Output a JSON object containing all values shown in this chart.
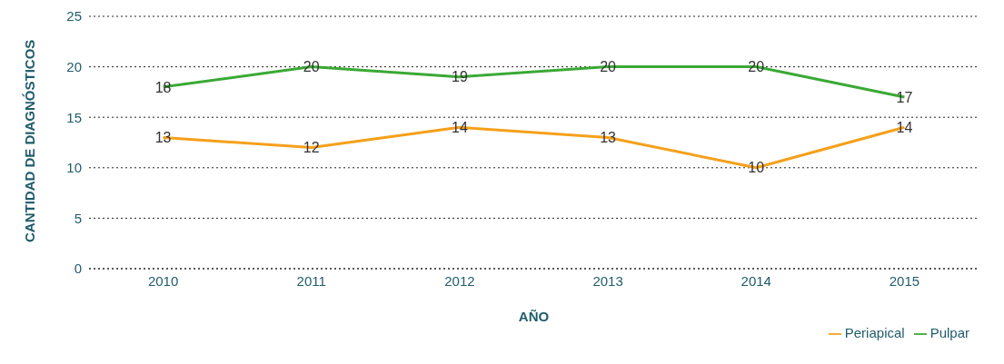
{
  "chart_data": {
    "type": "line",
    "xlabel": "AÑO",
    "ylabel": "CANTIDAD DE DIAGNÓSTICOS",
    "categories": [
      "2010",
      "2011",
      "2012",
      "2013",
      "2014",
      "2015"
    ],
    "series": [
      {
        "name": "Periapical",
        "color": "#f5a01a",
        "values": [
          13,
          12,
          14,
          13,
          10,
          14
        ]
      },
      {
        "name": "Pulpar",
        "color": "#3aa935",
        "values": [
          18,
          20,
          19,
          20,
          20,
          17
        ]
      }
    ],
    "ylim": [
      0,
      25
    ],
    "yticks": [
      0,
      5,
      10,
      15,
      20,
      25
    ],
    "grid": "y",
    "legend": "bottom right",
    "marker": "none",
    "line_style": "solid",
    "data_labels": true
  }
}
